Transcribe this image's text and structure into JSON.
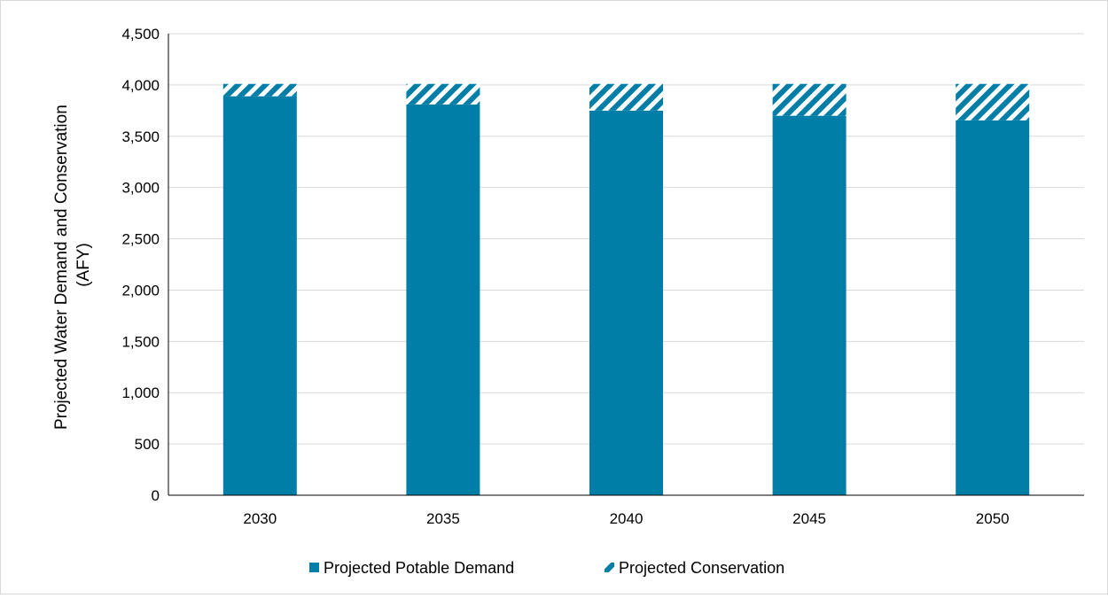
{
  "chart_data": {
    "type": "bar",
    "stacked": true,
    "categories": [
      "2030",
      "2035",
      "2040",
      "2045",
      "2050"
    ],
    "series": [
      {
        "name": "Projected Potable Demand",
        "values": [
          3890,
          3810,
          3750,
          3700,
          3655
        ],
        "color": "#007ea7",
        "pattern": "solid"
      },
      {
        "name": "Projected Conservation",
        "values": [
          120,
          200,
          260,
          310,
          355
        ],
        "color": "#007ea7",
        "pattern": "diagonal-stripes"
      }
    ],
    "ylabel_lines": [
      "Projected Water Demand and Conservation",
      "(AFY)"
    ],
    "ylim": [
      0,
      4500
    ],
    "yticks": [
      "0",
      "500",
      "1,000",
      "1,500",
      "2,000",
      "2,500",
      "3,000",
      "3,500",
      "4,000",
      "4,500"
    ],
    "ytick_values": [
      0,
      500,
      1000,
      1500,
      2000,
      2500,
      3000,
      3500,
      4000,
      4500
    ],
    "grid": true,
    "legend_position": "bottom"
  }
}
